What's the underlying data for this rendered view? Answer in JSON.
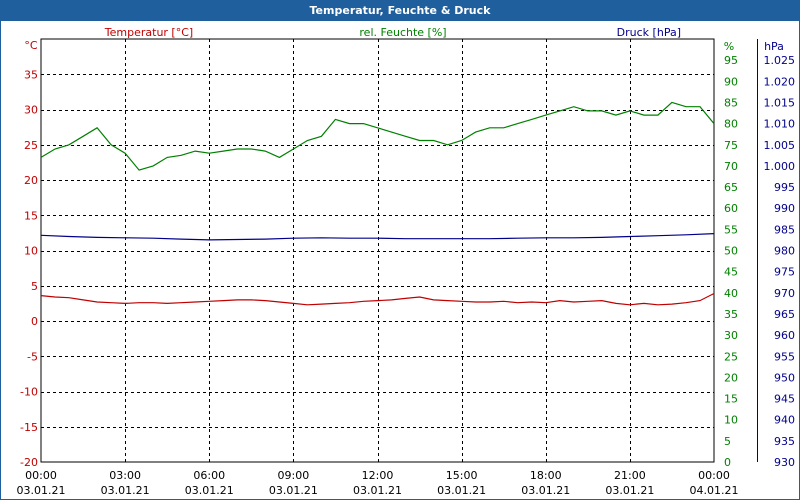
{
  "window": {
    "title": "Temperatur, Feuchte & Druck"
  },
  "colors": {
    "frame": "#1f5f9e",
    "temperature": "#c00000",
    "humidity": "#008000",
    "pressure": "#00008b",
    "grid": "#000000"
  },
  "chart_data": {
    "type": "line",
    "title": "Temperatur, Feuchte & Druck",
    "grid": true,
    "x_ticks": [
      {
        "time": "00:00",
        "date": "03.01.21"
      },
      {
        "time": "03:00",
        "date": "03.01.21"
      },
      {
        "time": "06:00",
        "date": "03.01.21"
      },
      {
        "time": "09:00",
        "date": "03.01.21"
      },
      {
        "time": "12:00",
        "date": "03.01.21"
      },
      {
        "time": "15:00",
        "date": "03.01.21"
      },
      {
        "time": "18:00",
        "date": "03.01.21"
      },
      {
        "time": "21:00",
        "date": "03.01.21"
      },
      {
        "time": "00:00",
        "date": "04.01.21"
      }
    ],
    "xlim_hours": [
      0,
      24
    ],
    "axes": {
      "left": {
        "unit": "°C",
        "label": "Temperatur [°C]",
        "ylim": [
          -20,
          40
        ],
        "step": 5,
        "color": "#c00000"
      },
      "right1": {
        "unit": "%",
        "label": "rel. Feuchte [%]",
        "ylim": [
          0,
          100
        ],
        "step": 5,
        "color": "#008000"
      },
      "right2": {
        "unit": "hPa",
        "label": "Druck [hPa]",
        "ylim": [
          930,
          1030
        ],
        "step": 5,
        "color": "#00008b",
        "format": "de"
      }
    },
    "series": [
      {
        "name": "Temperatur [°C]",
        "axis": "left",
        "color": "#c00000",
        "x": [
          0,
          0.5,
          1,
          1.5,
          2,
          2.5,
          3,
          3.5,
          4,
          4.5,
          5,
          5.5,
          6,
          6.5,
          7,
          7.5,
          8,
          8.5,
          9,
          9.5,
          10,
          10.5,
          11,
          11.5,
          12,
          12.5,
          13,
          13.5,
          14,
          14.5,
          15,
          15.5,
          16,
          16.5,
          17,
          17.5,
          18,
          18.5,
          19,
          19.5,
          20,
          20.5,
          21,
          21.5,
          22,
          22.5,
          23,
          23.5,
          24
        ],
        "y": [
          3.6,
          3.4,
          3.3,
          3.0,
          2.7,
          2.6,
          2.5,
          2.6,
          2.6,
          2.5,
          2.6,
          2.7,
          2.8,
          2.9,
          3.0,
          3.0,
          2.9,
          2.7,
          2.5,
          2.3,
          2.4,
          2.5,
          2.6,
          2.8,
          2.9,
          3.0,
          3.2,
          3.4,
          3.0,
          2.9,
          2.8,
          2.7,
          2.7,
          2.8,
          2.6,
          2.7,
          2.6,
          2.9,
          2.7,
          2.8,
          2.9,
          2.5,
          2.3,
          2.5,
          2.3,
          2.4,
          2.6,
          2.9,
          3.9
        ]
      },
      {
        "name": "rel. Feuchte [%]",
        "axis": "right1",
        "color": "#008000",
        "x": [
          0,
          0.5,
          1,
          1.5,
          2,
          2.5,
          3,
          3.5,
          4,
          4.5,
          5,
          5.5,
          6,
          6.5,
          7,
          7.5,
          8,
          8.5,
          9,
          9.5,
          10,
          10.5,
          11,
          11.5,
          12,
          12.5,
          13,
          13.5,
          14,
          14.5,
          15,
          15.5,
          16,
          16.5,
          17,
          17.5,
          18,
          18.5,
          19,
          19.5,
          20,
          20.5,
          21,
          21.5,
          22,
          22.5,
          23,
          23.5,
          24
        ],
        "y": [
          72,
          74,
          75,
          77,
          79,
          75,
          73,
          69,
          70,
          72,
          72.5,
          73.5,
          73,
          73.5,
          74,
          74,
          73.5,
          72,
          74,
          76,
          77,
          81,
          80,
          80,
          79,
          78,
          77,
          76,
          76,
          75,
          76,
          78,
          79,
          79,
          80,
          81,
          82,
          83,
          84,
          83,
          83,
          82,
          83,
          82,
          82,
          85,
          84,
          84,
          80
        ]
      },
      {
        "name": "Druck [hPa]",
        "axis": "right2",
        "color": "#00008b",
        "x": [
          0,
          1,
          2,
          3,
          4,
          5,
          6,
          7,
          8,
          9,
          10,
          11,
          12,
          13,
          14,
          15,
          16,
          17,
          18,
          19,
          20,
          21,
          22,
          23,
          24
        ],
        "y": [
          983.6,
          983.3,
          983.1,
          983.0,
          982.9,
          982.7,
          982.5,
          982.6,
          982.7,
          982.9,
          983.0,
          982.9,
          982.9,
          982.8,
          982.8,
          982.8,
          982.8,
          982.9,
          983.0,
          983.0,
          983.1,
          983.3,
          983.5,
          983.7,
          984.0
        ]
      }
    ]
  }
}
